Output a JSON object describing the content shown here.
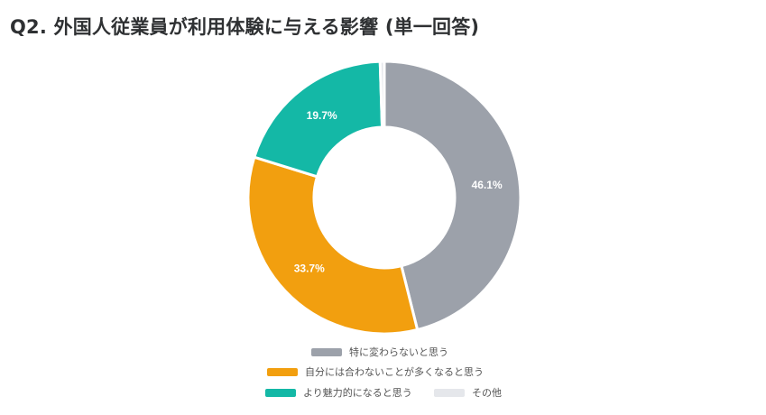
{
  "title": "Q2. 外国人従業員が利用体験に与える影響 (単一回答)",
  "chart_data": {
    "type": "pie",
    "donut": true,
    "categories": [
      "特に変わらないと思う",
      "自分には合わないことが多くなると思う",
      "より魅力的になると思う",
      "その他"
    ],
    "values": [
      46.1,
      33.7,
      19.7,
      0.5
    ],
    "labels": [
      "46.1%",
      "33.7%",
      "19.7%",
      ""
    ],
    "colors": [
      "#9ca1aa",
      "#f29f0f",
      "#14b8a6",
      "#e5e7eb"
    ],
    "legend_position": "bottom"
  }
}
